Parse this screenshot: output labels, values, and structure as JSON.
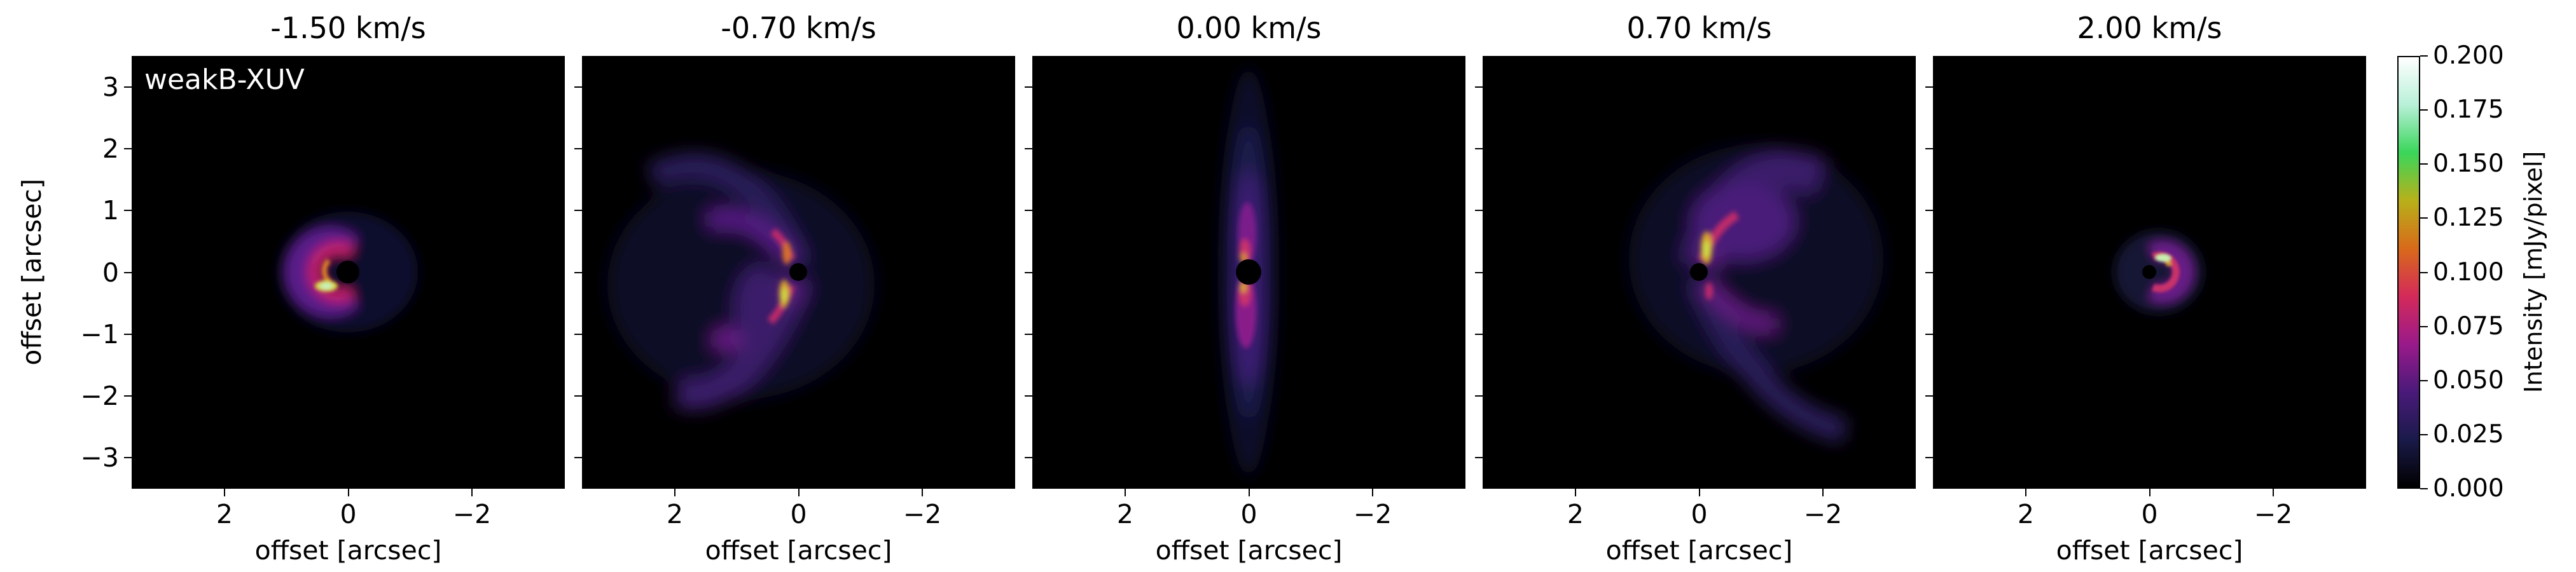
{
  "panels": [
    {
      "title": "-1.50 km/s",
      "xlabel": "offset [arcsec]"
    },
    {
      "title": "-0.70 km/s",
      "xlabel": "offset [arcsec]"
    },
    {
      "title": "0.00 km/s",
      "xlabel": "offset [arcsec]"
    },
    {
      "title": "0.70 km/s",
      "xlabel": "offset [arcsec]"
    },
    {
      "title": "2.00 km/s",
      "xlabel": "offset [arcsec]"
    }
  ],
  "model_label": "weakB-XUV",
  "ylabel": "offset [arcsec]",
  "axis": {
    "x_ticks": [
      "2",
      "0",
      "−2"
    ],
    "y_ticks": [
      "3",
      "2",
      "1",
      "0",
      "−1",
      "−2",
      "−3"
    ],
    "range": [
      -3.5,
      3.5
    ],
    "x_direction": "reversed"
  },
  "colorbar": {
    "label": "Intensity [mJy/pixel]",
    "ticks": [
      "0.000",
      "0.025",
      "0.050",
      "0.075",
      "0.100",
      "0.125",
      "0.150",
      "0.175",
      "0.200"
    ],
    "range": [
      0.0,
      0.2
    ],
    "colors": [
      "#000000",
      "#1a1a4a",
      "#4a1a7a",
      "#9a1a8a",
      "#d42a5a",
      "#d86a1a",
      "#b8b01a",
      "#3ad65a",
      "#b8f0d8",
      "#ffffff"
    ]
  }
}
